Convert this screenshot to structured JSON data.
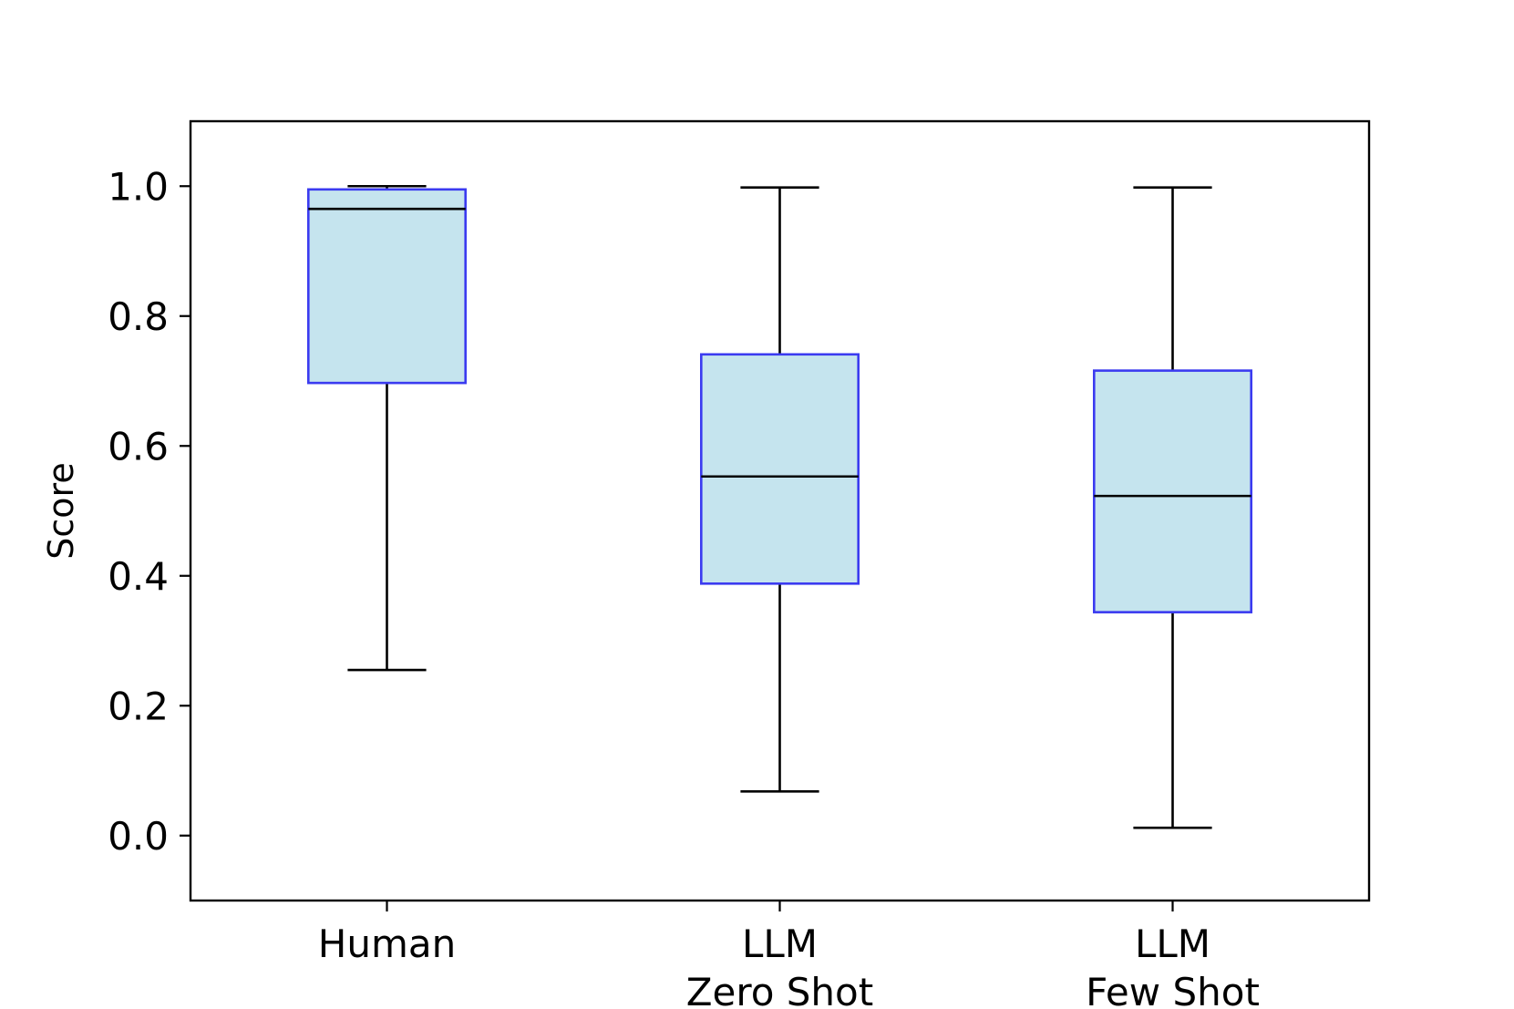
{
  "chart_data": {
    "type": "box",
    "title": "",
    "xlabel": "",
    "ylabel": "Score",
    "ylim": [
      -0.1,
      1.1
    ],
    "yticks": [
      "0.0",
      "0.2",
      "0.4",
      "0.6",
      "0.8",
      "1.0"
    ],
    "grid": false,
    "categories": [
      [
        "Human"
      ],
      [
        "LLM",
        "Zero Shot"
      ],
      [
        "LLM",
        "Few Shot"
      ]
    ],
    "boxes": [
      {
        "whisker_low": 0.255,
        "q1": 0.697,
        "median": 0.965,
        "q3": 0.995,
        "whisker_high": 1.0
      },
      {
        "whisker_low": 0.068,
        "q1": 0.388,
        "median": 0.553,
        "q3": 0.741,
        "whisker_high": 0.998
      },
      {
        "whisker_low": 0.012,
        "q1": 0.344,
        "median": 0.523,
        "q3": 0.716,
        "whisker_high": 0.998
      }
    ],
    "colors": {
      "box_fill": "#c5e4ee",
      "box_edge": "#3b3bf0",
      "line": "#000000"
    }
  }
}
